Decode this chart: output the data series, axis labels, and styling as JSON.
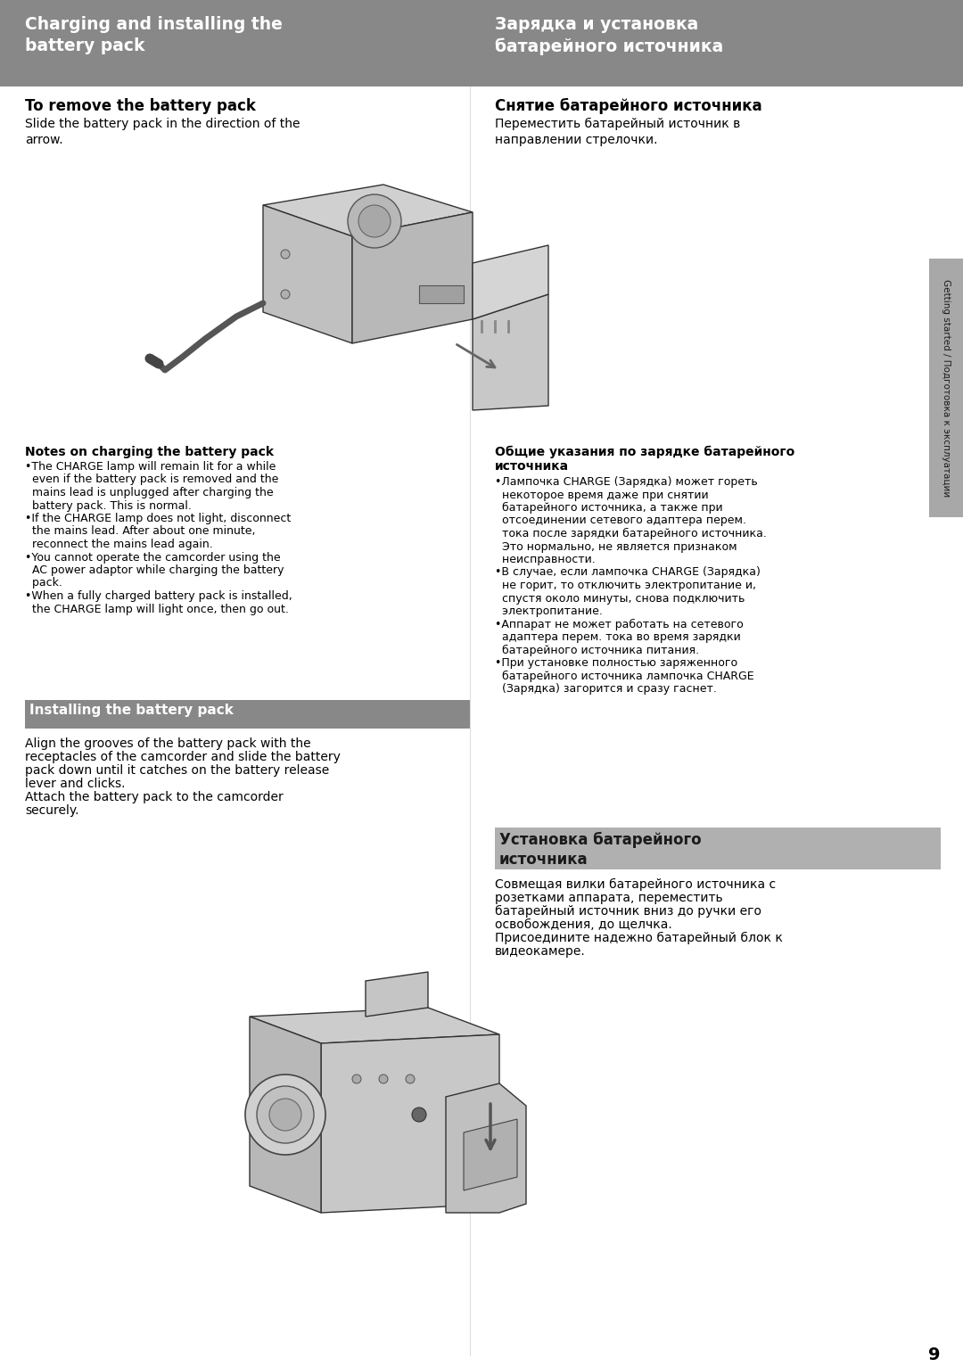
{
  "bg_color": "#ffffff",
  "header_bg": "#888888",
  "header_text_color": "#ffffff",
  "header_left": "Charging and installing the\nbattery pack",
  "header_right": "Зарядка и установка\nбатарейного источника",
  "section1_title_en": "To remove the battery pack",
  "section1_body_en": "Slide the battery pack in the direction of the\narrow.",
  "section1_title_ru": "Снятие батарейного источника",
  "section1_body_ru": "Переместить батарейный источник в\nнаправлении стрелочки.",
  "notes_title_en": "Notes on charging the battery pack",
  "notes_body_en_lines": [
    "•The CHARGE lamp will remain lit for a while",
    "  even if the battery pack is removed and the",
    "  mains lead is unplugged after charging the",
    "  battery pack. This is normal.",
    "•If the CHARGE lamp does not light, disconnect",
    "  the mains lead. After about one minute,",
    "  reconnect the mains lead again.",
    "•You cannot operate the camcorder using the",
    "  AC power adaptor while charging the battery",
    "  pack.",
    "•When a fully charged battery pack is installed,",
    "  the CHARGE lamp will light once, then go out."
  ],
  "notes_title_ru_line1": "Общие указания по зарядке батарейного",
  "notes_title_ru_line2": "источника",
  "notes_body_ru_lines": [
    "•Лампочка CHARGE (Зарядка) может гореть",
    "  некоторое время даже при снятии",
    "  батарейного источника, а также при",
    "  отсоединении сетевого адаптера перем.",
    "  тока после зарядки батарейного источника.",
    "  Это нормально, не является признаком",
    "  неисправности.",
    "•В случае, если лампочка CHARGE (Зарядка)",
    "  не горит, то отключить электропитание и,",
    "  спустя около минуты, снова подключить",
    "  электропитание.",
    "•Аппарат не может работать на сетевого",
    "  адаптера перем. тока во время зарядки",
    "  батарейного источника питания.",
    "•При установке полностью заряженного",
    "  батарейного источника лампочка CHARGE",
    "  (Зарядка) загорится и сразу гаснет."
  ],
  "install_title_en": "Installing the battery pack",
  "install_body_en_lines": [
    "Align the grooves of the battery pack with the",
    "receptacles of the camcorder and slide the battery",
    "pack down until it catches on the battery release",
    "lever and clicks.",
    "Attach the battery pack to the camcorder",
    "securely."
  ],
  "install_title_ru_line1": "Установка батарейного",
  "install_title_ru_line2": "источника",
  "install_body_ru_lines": [
    "Совмещая вилки батарейного источника с",
    "розетками аппарата, переместить",
    "батарейный источник вниз до ручки его",
    "освобождения, до щелчка.",
    "Присоедините надежно батарейный блок к",
    "видеокамере."
  ],
  "sidebar_text": "Getting started / Подготовка к эксплуатации",
  "page_number": "9"
}
